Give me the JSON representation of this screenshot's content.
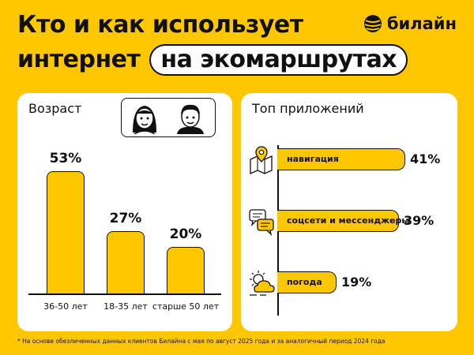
{
  "title": {
    "line1": "Кто и как использует",
    "line2_prefix": "интернет",
    "line2_highlight": "на экомаршрутах"
  },
  "brand": {
    "name": "билайн",
    "logo_icon": "beeline-logo-icon"
  },
  "age_card": {
    "title": "Возраст"
  },
  "apps_card": {
    "title": "Топ приложений"
  },
  "chart_data": [
    {
      "type": "bar",
      "title": "Возраст",
      "categories": [
        "36-50 лет",
        "18-35 лет",
        "старше 50 лет"
      ],
      "values": [
        53,
        27,
        20
      ],
      "value_labels": [
        "53%",
        "27%",
        "20%"
      ],
      "unit": "%",
      "ylim": [
        0,
        60
      ],
      "grid": false
    },
    {
      "type": "bar",
      "orientation": "horizontal",
      "title": "Топ приложений",
      "categories": [
        "навигация",
        "соцсети и мессенджеры",
        "погода"
      ],
      "values": [
        41,
        39,
        19
      ],
      "value_labels": [
        "41%",
        "39%",
        "19%"
      ],
      "icons": [
        "map-pin-icon",
        "chat-bubbles-icon",
        "weather-icon"
      ],
      "unit": "%",
      "xlim": [
        0,
        45
      ],
      "grid": false
    }
  ],
  "footnote": "* На основе обезличенных данных клиентов Билайна с мая по август 2025 года и за аналогичный период 2024 года",
  "colors": {
    "background": "#FFC700",
    "bar": "#FFC700",
    "card": "#FFFFFF",
    "ink": "#111111"
  }
}
